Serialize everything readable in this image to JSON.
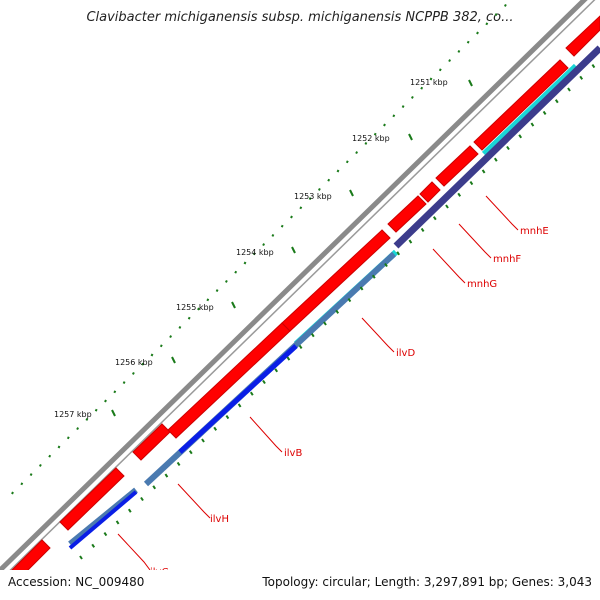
{
  "header": {
    "title": "Clavibacter michiganensis subsp. michiganensis NCPPB 382, co..."
  },
  "footer": {
    "accession": "Accession: NC_009480",
    "summary": "Topology: circular; Length: 3,297,891 bp; Genes: 3,043"
  },
  "ticks": [
    "1251 kbp",
    "1252 kbp",
    "1253 kbp",
    "1254 kbp",
    "1255 kbp",
    "1256 kbp",
    "1257 kbp"
  ],
  "genes": [
    "mnhE",
    "mnhF",
    "mnhG",
    "ilvD",
    "ilvB",
    "ilvH",
    "ilvC"
  ],
  "colors": {
    "cds": "#ff0000",
    "gene_label": "#dd0000",
    "backbone": "#808080",
    "tick_marks": "#1a7a1a",
    "cyan_feature": "#19d6d6",
    "navy_feature": "#3c3c8c",
    "steel_feature": "#4a7ab0",
    "blue_feature": "#0a1ee6"
  }
}
